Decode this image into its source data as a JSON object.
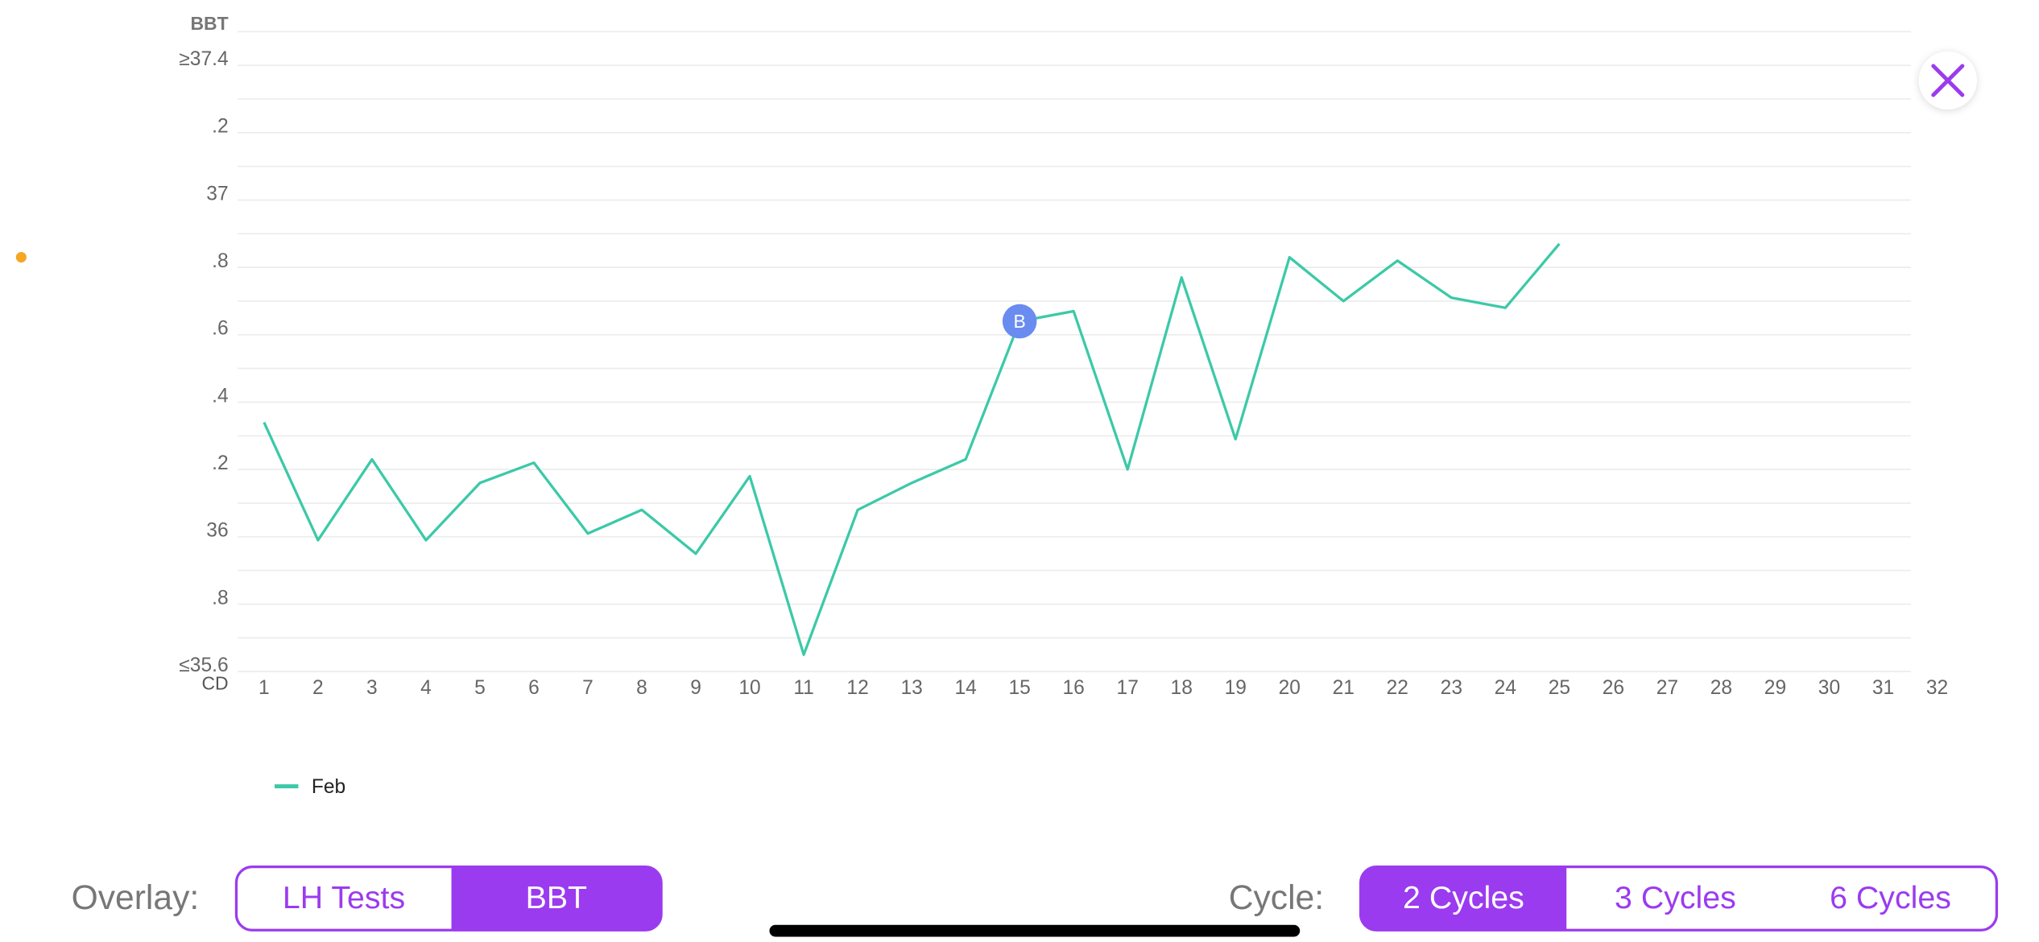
{
  "chart_data": {
    "type": "line",
    "y_label": "BBT",
    "x_label": "CD",
    "categories": [
      "1",
      "2",
      "3",
      "4",
      "5",
      "6",
      "7",
      "8",
      "9",
      "10",
      "11",
      "12",
      "13",
      "14",
      "15",
      "16",
      "17",
      "18",
      "19",
      "20",
      "21",
      "22",
      "23",
      "24",
      "25",
      "26",
      "27",
      "28",
      "29",
      "30",
      "31",
      "32"
    ],
    "series": [
      {
        "name": "Feb",
        "color": "#3cc9a8",
        "values": [
          36.34,
          35.99,
          36.23,
          35.99,
          36.16,
          36.22,
          36.01,
          36.08,
          35.95,
          36.18,
          35.65,
          36.08,
          36.16,
          36.23,
          36.64,
          36.67,
          36.2,
          36.77,
          36.29,
          36.83,
          36.7,
          36.82,
          36.71,
          36.68,
          36.87,
          null,
          null,
          null,
          null,
          null,
          null,
          null
        ]
      }
    ],
    "ylim": [
      35.6,
      37.5
    ],
    "yticks": [
      {
        "value": 37.4,
        "label": "≥37.4"
      },
      {
        "value": 37.2,
        "label": ".2"
      },
      37,
      {
        "value": 36.8,
        "label": ".8"
      },
      {
        "value": 36.6,
        "label": ".6"
      },
      {
        "value": 36.4,
        "label": ".4"
      },
      {
        "value": 36.2,
        "label": ".2"
      },
      36,
      {
        "value": 35.8,
        "label": ".8"
      },
      {
        "value": 35.6,
        "label": "≤35.6"
      }
    ],
    "minor_yticks": [
      37.5,
      37.3,
      37.1,
      36.9,
      36.7,
      36.5,
      36.3,
      36.1,
      35.9,
      35.7
    ],
    "grid": true,
    "annotation": {
      "text": "B",
      "x": "15",
      "color": "#6a8cf0"
    }
  },
  "overlay": {
    "label": "Overlay:",
    "options": [
      "LH Tests",
      "BBT"
    ],
    "selected": "BBT"
  },
  "cycle": {
    "label": "Cycle:",
    "options": [
      "2 Cycles",
      "3 Cycles",
      "6 Cycles"
    ],
    "selected": "2 Cycles"
  }
}
